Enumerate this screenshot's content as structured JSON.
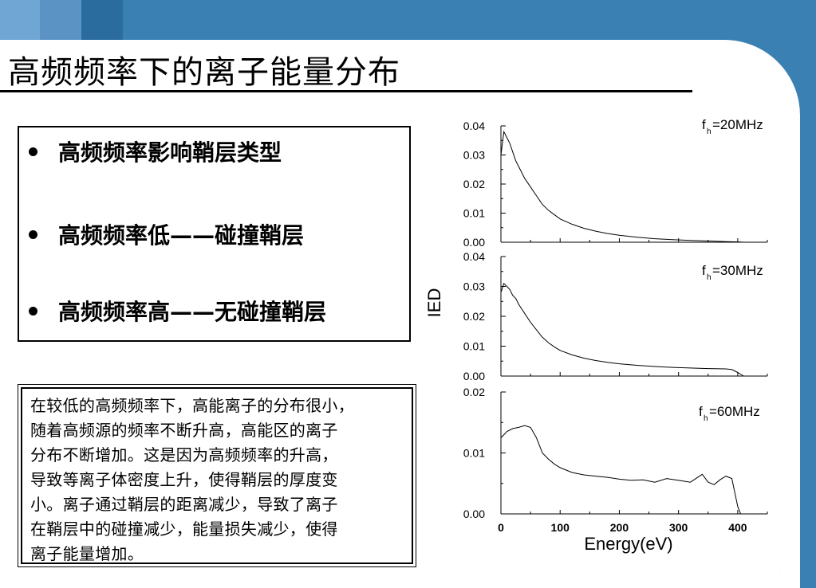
{
  "slide": {
    "title": "高频频率下的离子能量分布",
    "bullets": [
      "高频频率影响鞘层类型",
      "高频频率低——碰撞鞘层",
      "高频频率高——无碰撞鞘层"
    ],
    "paragraph": "在较低的高频频率下，高能离子的分布很小，随着高频源的频率不断升高，高能区的离子分布不断增加。这是因为高频频率的升高，导致等离子体密度上升，使得鞘层的厚度变小。离子通过鞘层的距离减少，导致了离子在鞘层中的碰撞减少，能量损失减少，使得离子能量增加。",
    "paragraph_lines": [
      "在较低的高频频率下，高能离子的分布很小，",
      "随着高频源的频率不断升高，高能区的离子",
      "分布不断增加。这是因为高频频率的升高，",
      "导致等离子体密度上升，使得鞘层的厚度变",
      "小。离子通过鞘层的距离减少，导致了离子",
      "在鞘层中的碰撞减少，能量损失减少，使得",
      "离子能量增加。"
    ],
    "colors": {
      "band": "#3a80b3",
      "background": "#ffffff",
      "ink": "#000000"
    }
  },
  "chart_data": [
    {
      "type": "line",
      "label_main": "f",
      "label_sub": "h",
      "label_rest": "=20MHz",
      "ylabel": "IED",
      "xlabel": "Energy(eV)",
      "xlim": [
        0,
        450
      ],
      "ylim": [
        0,
        0.04
      ],
      "yticks": [
        "0.00",
        "0.01",
        "0.02",
        "0.03",
        "0.04"
      ],
      "x": [
        0,
        5,
        10,
        15,
        20,
        25,
        30,
        40,
        50,
        60,
        70,
        80,
        90,
        100,
        120,
        140,
        160,
        180,
        200,
        230,
        260,
        290,
        320,
        350,
        380,
        400,
        410,
        420
      ],
      "y": [
        0.03,
        0.038,
        0.036,
        0.034,
        0.031,
        0.028,
        0.026,
        0.022,
        0.019,
        0.016,
        0.013,
        0.011,
        0.0095,
        0.008,
        0.0062,
        0.0048,
        0.0038,
        0.003,
        0.0024,
        0.0017,
        0.0012,
        0.0009,
        0.0006,
        0.0004,
        0.0002,
        0.0001,
        0.0,
        0.0
      ]
    },
    {
      "type": "line",
      "label_main": "f",
      "label_sub": "h",
      "label_rest": "=30MHz",
      "xlim": [
        0,
        450
      ],
      "ylim": [
        0,
        0.04
      ],
      "yticks": [
        "0.00",
        "0.01",
        "0.02",
        "0.03",
        "0.04"
      ],
      "x": [
        0,
        5,
        10,
        15,
        20,
        25,
        30,
        40,
        50,
        60,
        70,
        80,
        90,
        100,
        120,
        140,
        160,
        180,
        200,
        230,
        260,
        290,
        320,
        350,
        380,
        390,
        400,
        410
      ],
      "y": [
        0.028,
        0.031,
        0.03,
        0.029,
        0.027,
        0.026,
        0.024,
        0.021,
        0.018,
        0.0155,
        0.013,
        0.0112,
        0.0098,
        0.0086,
        0.0071,
        0.006,
        0.0052,
        0.0046,
        0.0041,
        0.0036,
        0.0032,
        0.0029,
        0.0027,
        0.0025,
        0.0024,
        0.0022,
        0.0012,
        0.0
      ]
    },
    {
      "type": "line",
      "label_main": "f",
      "label_sub": "h",
      "label_rest": "=60MHz",
      "xlim": [
        0,
        450
      ],
      "ylim": [
        0,
        0.02
      ],
      "yticks": [
        "0.00",
        "0.01",
        "0.02"
      ],
      "xticks": [
        "0",
        "100",
        "200",
        "300",
        "400"
      ],
      "x": [
        0,
        5,
        10,
        20,
        30,
        40,
        50,
        60,
        70,
        80,
        90,
        100,
        120,
        140,
        160,
        180,
        200,
        220,
        240,
        260,
        280,
        300,
        320,
        340,
        350,
        360,
        370,
        380,
        390,
        395,
        400,
        405
      ],
      "y": [
        0.0125,
        0.013,
        0.0135,
        0.014,
        0.0142,
        0.0145,
        0.0142,
        0.0125,
        0.01,
        0.009,
        0.0082,
        0.0076,
        0.0068,
        0.0064,
        0.0062,
        0.006,
        0.0057,
        0.0055,
        0.0056,
        0.0052,
        0.0058,
        0.0055,
        0.0052,
        0.0065,
        0.0052,
        0.0048,
        0.0056,
        0.0062,
        0.0058,
        0.0035,
        0.0012,
        0.0
      ]
    }
  ]
}
